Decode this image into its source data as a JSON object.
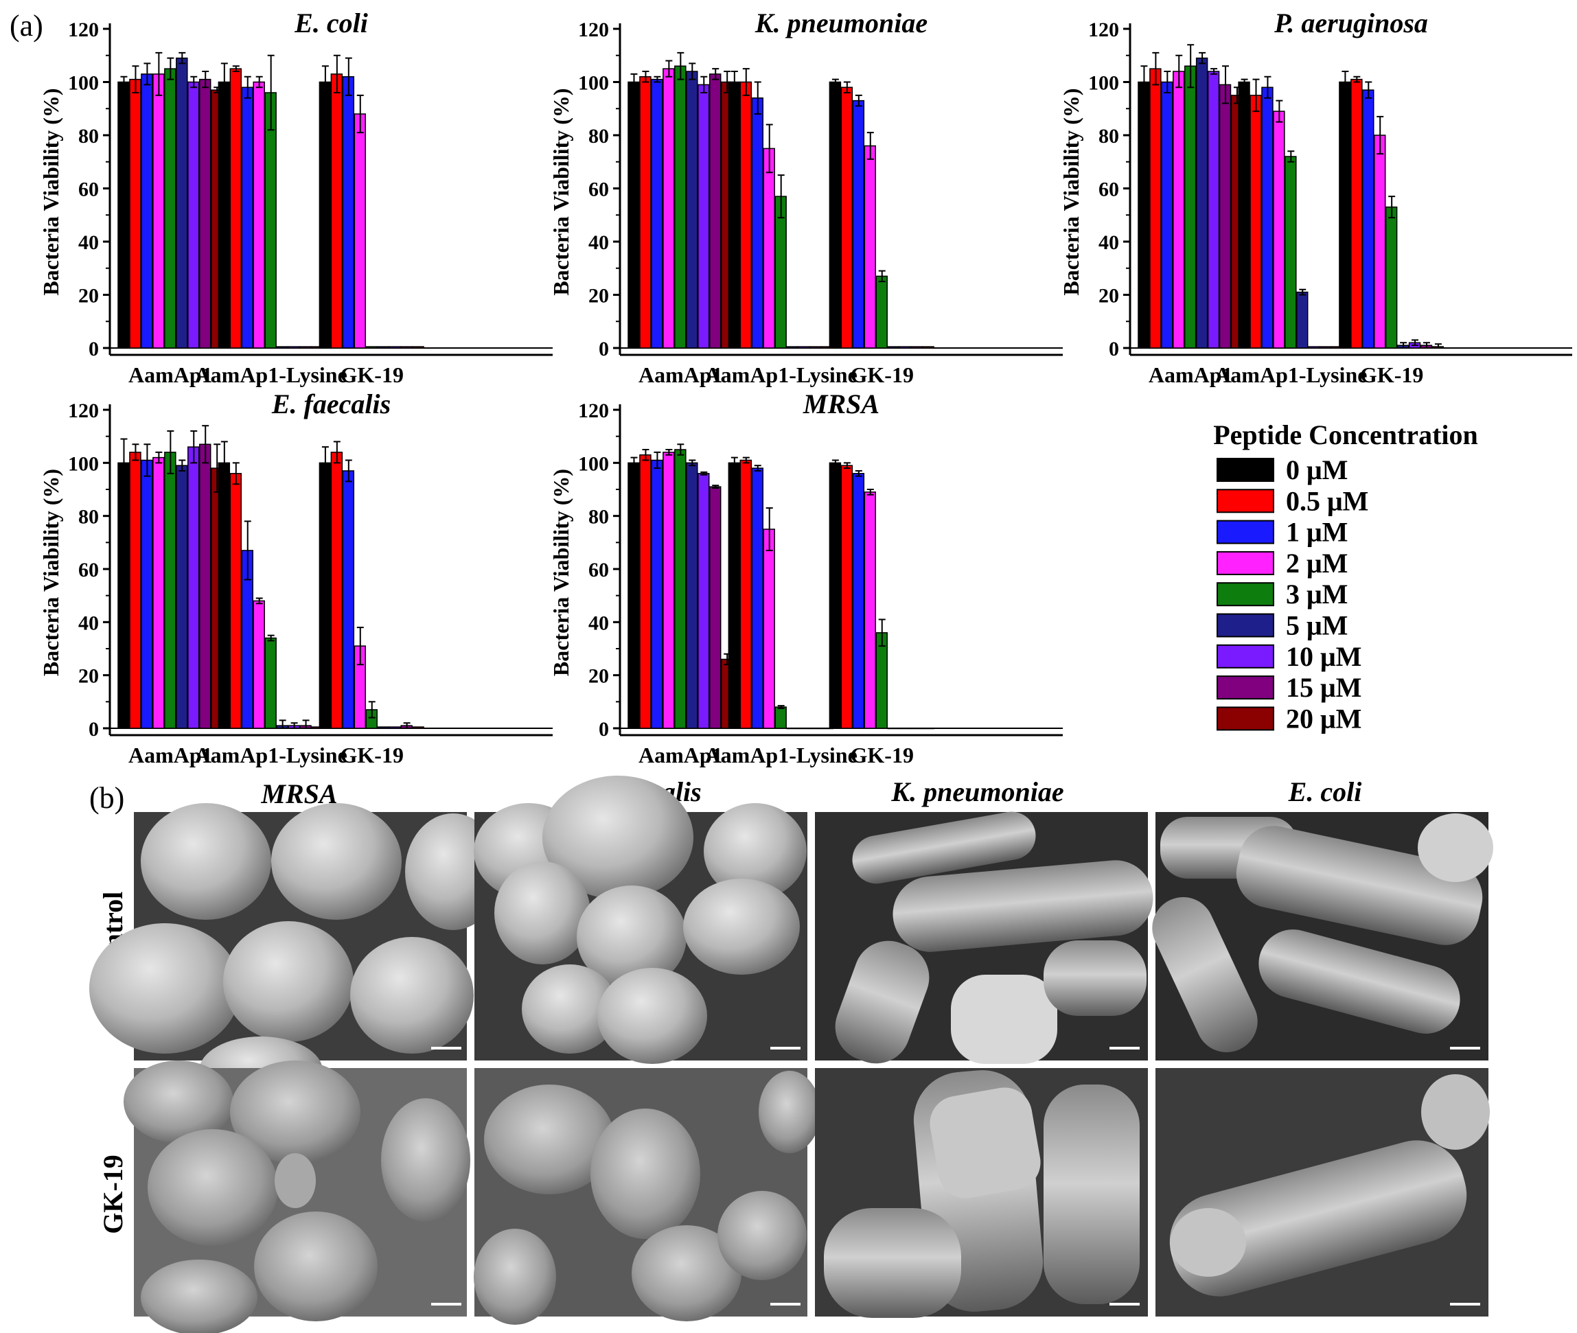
{
  "panel_labels": {
    "a": "(a)",
    "b": "(b)"
  },
  "legend": {
    "title": "Peptide Concentration",
    "items": [
      {
        "label": "0 μM",
        "color": "#000000"
      },
      {
        "label": "0.5 μM",
        "color": "#ff0000"
      },
      {
        "label": "1 μM",
        "color": "#1a1aff"
      },
      {
        "label": "2 μM",
        "color": "#ff22ff"
      },
      {
        "label": "3 μM",
        "color": "#0d7d0d"
      },
      {
        "label": "5 μM",
        "color": "#1f1f8c"
      },
      {
        "label": "10 μM",
        "color": "#7a1aff"
      },
      {
        "label": "15 μM",
        "color": "#800080"
      },
      {
        "label": "20 μM",
        "color": "#8b0000"
      }
    ]
  },
  "chart_data": [
    {
      "type": "bar",
      "title": "E. coli",
      "ylabel": "Bacteria Viability (%)",
      "ylim": [
        0,
        120
      ],
      "yticks": [
        "0",
        "20",
        "40",
        "60",
        "80",
        "100",
        "120"
      ],
      "categories": [
        "AamAp1",
        "AamAp1-Lysine",
        "GK-19"
      ],
      "values": [
        [
          100,
          101,
          103,
          103,
          105,
          109,
          100,
          101,
          97
        ],
        [
          100,
          105,
          98,
          100,
          96,
          0.5,
          0.5,
          0.5,
          0.5
        ],
        [
          100,
          103,
          102,
          88,
          0.5,
          0.5,
          0.5,
          0.5,
          0.5
        ]
      ],
      "errors": [
        [
          2,
          5,
          4,
          8,
          4,
          2,
          2,
          3,
          1
        ],
        [
          7,
          1,
          4,
          2,
          14,
          0,
          0,
          0,
          0
        ],
        [
          6,
          7,
          7,
          7,
          0,
          0,
          0,
          0,
          0
        ]
      ]
    },
    {
      "type": "bar",
      "title": "K. pneumoniae",
      "ylabel": "Bacteria Viability (%)",
      "ylim": [
        0,
        120
      ],
      "yticks": [
        "0",
        "20",
        "40",
        "60",
        "80",
        "100",
        "120"
      ],
      "categories": [
        "AamAp1",
        "AamAp1-Lysine",
        "GK-19"
      ],
      "values": [
        [
          100,
          102,
          101,
          105,
          106,
          104,
          99,
          103,
          100
        ],
        [
          100,
          100,
          94,
          75,
          57,
          0.5,
          0.5,
          0.5,
          0.5
        ],
        [
          100,
          98,
          93,
          76,
          27,
          0.5,
          0.5,
          0.5,
          0.5
        ]
      ],
      "errors": [
        [
          3,
          2,
          1,
          3,
          5,
          3,
          3,
          2,
          4
        ],
        [
          4,
          5,
          6,
          9,
          8,
          0,
          0,
          0,
          0
        ],
        [
          1,
          2,
          2,
          5,
          2,
          0,
          0,
          0,
          0
        ]
      ]
    },
    {
      "type": "bar",
      "title": "P. aeruginosa",
      "ylabel": "Bacteria Viability (%)",
      "ylim": [
        0,
        120
      ],
      "yticks": [
        "0",
        "20",
        "40",
        "60",
        "80",
        "100",
        "120"
      ],
      "categories": [
        "AamAp1",
        "AamAp1-Lysine",
        "GK-19"
      ],
      "values": [
        [
          100,
          105,
          100,
          104,
          106,
          109,
          104,
          99,
          95
        ],
        [
          100,
          95,
          98,
          89,
          72,
          21,
          0.5,
          0.5,
          0.5
        ],
        [
          100,
          101,
          97,
          80,
          53,
          1,
          2,
          1,
          0.5
        ]
      ],
      "errors": [
        [
          6,
          6,
          4,
          6,
          8,
          2,
          1,
          7,
          3
        ],
        [
          1,
          6,
          4,
          4,
          2,
          1,
          0,
          0,
          0
        ],
        [
          4,
          1,
          3,
          7,
          4,
          1,
          1,
          1,
          1
        ]
      ]
    },
    {
      "type": "bar",
      "title": "E. faecalis",
      "ylabel": "Bacteria Viability (%)",
      "ylim": [
        0,
        120
      ],
      "yticks": [
        "0",
        "20",
        "40",
        "60",
        "80",
        "100",
        "120"
      ],
      "categories": [
        "AamAp1",
        "AamAp1-Lysine",
        "GK-19"
      ],
      "values": [
        [
          100,
          104,
          101,
          102,
          104,
          99,
          106,
          107,
          98
        ],
        [
          100,
          96,
          67,
          48,
          34,
          1,
          1,
          1,
          0.5
        ],
        [
          100,
          104,
          97,
          31,
          7,
          0.5,
          0.5,
          1,
          0.5
        ]
      ],
      "errors": [
        [
          9,
          3,
          6,
          2,
          8,
          2,
          6,
          7,
          9
        ],
        [
          8,
          4,
          11,
          1,
          1,
          2,
          1,
          2,
          0
        ],
        [
          6,
          4,
          4,
          7,
          3,
          0,
          0,
          1,
          0
        ]
      ]
    },
    {
      "type": "bar",
      "title": "MRSA",
      "ylabel": "Bacteria Viability (%)",
      "ylim": [
        0,
        120
      ],
      "yticks": [
        "0",
        "20",
        "40",
        "60",
        "80",
        "100",
        "120"
      ],
      "categories": [
        "AamAp1",
        "AamAp1-Lysine",
        "GK-19"
      ],
      "values": [
        [
          100,
          103,
          101,
          104,
          105,
          100,
          96,
          91,
          26
        ],
        [
          100,
          101,
          98,
          75,
          8,
          0,
          0,
          0,
          0
        ],
        [
          100,
          99,
          96,
          89,
          36,
          0,
          0,
          0,
          0
        ]
      ],
      "errors": [
        [
          2,
          2,
          3,
          1,
          2,
          1,
          0.5,
          0.5,
          2
        ],
        [
          2,
          1,
          1,
          8,
          0.5,
          0,
          0,
          0,
          0
        ],
        [
          1,
          1,
          1,
          1,
          5,
          0,
          0,
          0,
          0
        ]
      ]
    }
  ],
  "micrographs": {
    "columns": [
      "MRSA",
      "E. faecalis",
      "K. pneumoniae",
      "E. coli"
    ],
    "rows": [
      "Control",
      "GK-19"
    ]
  }
}
